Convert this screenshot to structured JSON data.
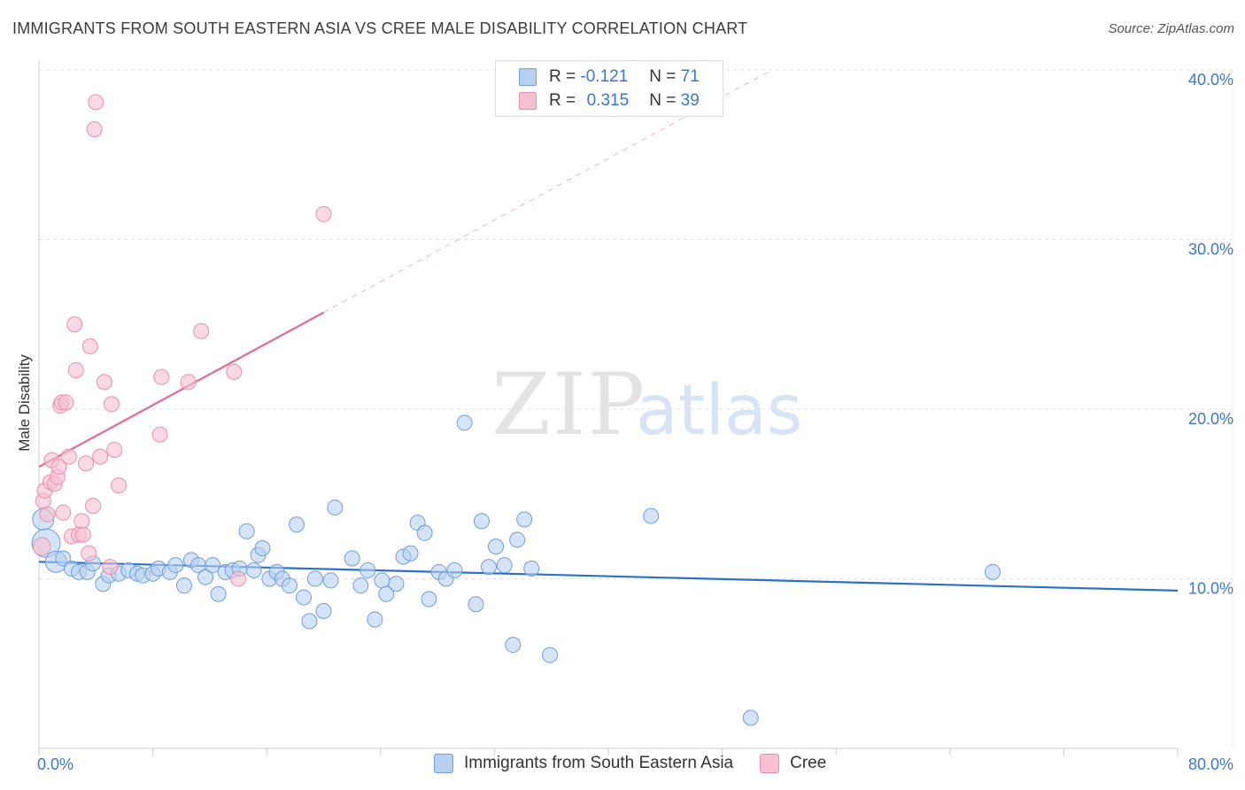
{
  "title": "IMMIGRANTS FROM SOUTH EASTERN ASIA VS CREE MALE DISABILITY CORRELATION CHART",
  "source": "Source: ZipAtlas.com",
  "watermark": {
    "zip": "ZIP",
    "atlas": "atlas"
  },
  "legend": {
    "blue": {
      "r_label": "R =",
      "r_value": "-0.121",
      "n_label": "N =",
      "n_value": "71"
    },
    "pink": {
      "r_label": "R =",
      "r_value": "0.315",
      "n_label": "N =",
      "n_value": "39"
    }
  },
  "colors": {
    "blue_fill": "#b7d0f0",
    "blue_stroke": "#6f9fdc",
    "blue_line": "#2a72c9",
    "pink_fill": "#f7c0d2",
    "pink_stroke": "#e890ae",
    "pink_line": "#e46a94",
    "axis_text": "#3a78c9",
    "grid": "#e2e2e2"
  },
  "chart_data": {
    "type": "scatter",
    "title": "IMMIGRANTS FROM SOUTH EASTERN ASIA VS CREE MALE DISABILITY CORRELATION CHART",
    "xlabel": "",
    "ylabel": "Male Disability",
    "xlim": [
      0,
      80
    ],
    "ylim": [
      0,
      40
    ],
    "x_tick_labels": [
      "0.0%",
      "80.0%"
    ],
    "y_ticks": [
      10,
      20,
      30,
      40
    ],
    "y_tick_labels": [
      "10.0%",
      "20.0%",
      "30.0%",
      "40.0%"
    ],
    "grid": true,
    "legend_position": "top-center",
    "series": [
      {
        "name": "Immigrants from South Eastern Asia",
        "color": "#6f9fdc",
        "points": [
          [
            0.3,
            13.5
          ],
          [
            0.5,
            12.1
          ],
          [
            1.2,
            11.0
          ],
          [
            1.7,
            11.2
          ],
          [
            2.3,
            10.6
          ],
          [
            2.8,
            10.4
          ],
          [
            3.4,
            10.4
          ],
          [
            3.8,
            10.9
          ],
          [
            4.5,
            9.7
          ],
          [
            4.9,
            10.2
          ],
          [
            5.6,
            10.3
          ],
          [
            6.3,
            10.5
          ],
          [
            6.9,
            10.3
          ],
          [
            7.3,
            10.2
          ],
          [
            8.0,
            10.3
          ],
          [
            8.4,
            10.6
          ],
          [
            9.2,
            10.4
          ],
          [
            9.6,
            10.8
          ],
          [
            10.2,
            9.6
          ],
          [
            10.7,
            11.1
          ],
          [
            11.2,
            10.8
          ],
          [
            11.7,
            10.1
          ],
          [
            12.2,
            10.8
          ],
          [
            12.6,
            9.1
          ],
          [
            13.1,
            10.4
          ],
          [
            13.6,
            10.5
          ],
          [
            14.1,
            10.6
          ],
          [
            14.6,
            12.8
          ],
          [
            15.1,
            10.5
          ],
          [
            15.4,
            11.4
          ],
          [
            15.7,
            11.8
          ],
          [
            16.2,
            10.0
          ],
          [
            16.7,
            10.4
          ],
          [
            17.1,
            10.0
          ],
          [
            17.6,
            9.6
          ],
          [
            18.1,
            13.2
          ],
          [
            18.6,
            8.9
          ],
          [
            19.0,
            7.5
          ],
          [
            19.4,
            10.0
          ],
          [
            20.0,
            8.1
          ],
          [
            20.5,
            9.9
          ],
          [
            20.8,
            14.2
          ],
          [
            22.0,
            11.2
          ],
          [
            22.6,
            9.6
          ],
          [
            23.1,
            10.5
          ],
          [
            23.6,
            7.6
          ],
          [
            24.1,
            9.9
          ],
          [
            24.4,
            9.1
          ],
          [
            25.1,
            9.7
          ],
          [
            25.6,
            11.3
          ],
          [
            26.1,
            11.5
          ],
          [
            26.6,
            13.3
          ],
          [
            27.1,
            12.7
          ],
          [
            27.4,
            8.8
          ],
          [
            28.1,
            10.4
          ],
          [
            28.6,
            10.0
          ],
          [
            29.2,
            10.5
          ],
          [
            29.9,
            19.2
          ],
          [
            30.7,
            8.5
          ],
          [
            31.1,
            13.4
          ],
          [
            31.6,
            10.7
          ],
          [
            32.1,
            11.9
          ],
          [
            32.7,
            10.8
          ],
          [
            33.3,
            6.1
          ],
          [
            33.6,
            12.3
          ],
          [
            34.1,
            13.5
          ],
          [
            34.6,
            10.6
          ],
          [
            35.9,
            5.5
          ],
          [
            43.0,
            13.7
          ],
          [
            50.0,
            1.8
          ],
          [
            67.0,
            10.4
          ]
        ]
      },
      {
        "name": "Cree",
        "color": "#e890ae",
        "points": [
          [
            0.2,
            11.9
          ],
          [
            0.3,
            14.6
          ],
          [
            0.4,
            15.2
          ],
          [
            0.6,
            13.8
          ],
          [
            0.8,
            15.7
          ],
          [
            0.9,
            17.0
          ],
          [
            1.1,
            15.6
          ],
          [
            1.3,
            16.0
          ],
          [
            1.4,
            16.6
          ],
          [
            1.5,
            20.2
          ],
          [
            1.6,
            20.4
          ],
          [
            1.7,
            13.9
          ],
          [
            1.9,
            20.4
          ],
          [
            2.1,
            17.2
          ],
          [
            2.3,
            12.5
          ],
          [
            2.5,
            25.0
          ],
          [
            2.6,
            22.3
          ],
          [
            2.8,
            12.6
          ],
          [
            3.0,
            13.4
          ],
          [
            3.1,
            12.6
          ],
          [
            3.3,
            16.8
          ],
          [
            3.5,
            11.5
          ],
          [
            3.6,
            23.7
          ],
          [
            3.8,
            14.3
          ],
          [
            3.9,
            36.5
          ],
          [
            4.0,
            38.1
          ],
          [
            4.3,
            17.2
          ],
          [
            4.6,
            21.6
          ],
          [
            5.0,
            10.7
          ],
          [
            5.1,
            20.3
          ],
          [
            5.3,
            17.6
          ],
          [
            5.6,
            15.5
          ],
          [
            8.5,
            18.5
          ],
          [
            8.6,
            21.9
          ],
          [
            10.5,
            21.6
          ],
          [
            11.4,
            24.6
          ],
          [
            13.7,
            22.2
          ],
          [
            14.0,
            10.0
          ],
          [
            20.0,
            31.5
          ]
        ]
      }
    ],
    "trendlines": [
      {
        "series": "Immigrants from South Eastern Asia",
        "x": [
          0,
          80
        ],
        "y": [
          11.0,
          9.3
        ],
        "style": "solid"
      },
      {
        "series": "Cree",
        "x": [
          0,
          20
        ],
        "y": [
          16.6,
          25.7
        ],
        "style": "solid"
      },
      {
        "series": "Cree",
        "x": [
          20,
          51.5
        ],
        "y": [
          25.7,
          40.0
        ],
        "style": "dashed"
      }
    ]
  }
}
